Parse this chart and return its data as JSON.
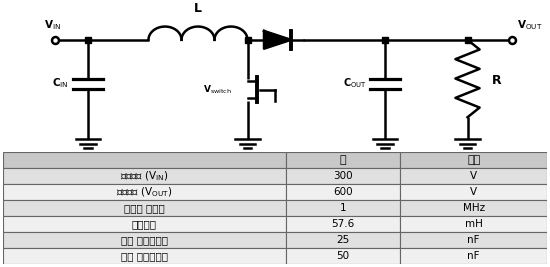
{
  "table_headers": [
    "값",
    "단위"
  ],
  "row_display": [
    [
      "입력전압 (V$_{\\rm IN}$)",
      "300",
      "V"
    ],
    [
      "출력전압 (V$_{\\rm OUT}$)",
      "600",
      "V"
    ],
    [
      "스위칭 주파수",
      "1",
      "MHz"
    ],
    [
      "인덕턴스",
      "57.6",
      "mH"
    ],
    [
      "입력 커패시턴스",
      "25",
      "nF"
    ],
    [
      "출력 커패시턴스",
      "50",
      "nF"
    ]
  ],
  "header_bg": "#c8c8c8",
  "row_bg_alt": "#e0e0e0",
  "row_bg_norm": "#f0f0f0",
  "circuit_bg": "#ffffff",
  "line_color": "#000000",
  "line_width": 1.8
}
